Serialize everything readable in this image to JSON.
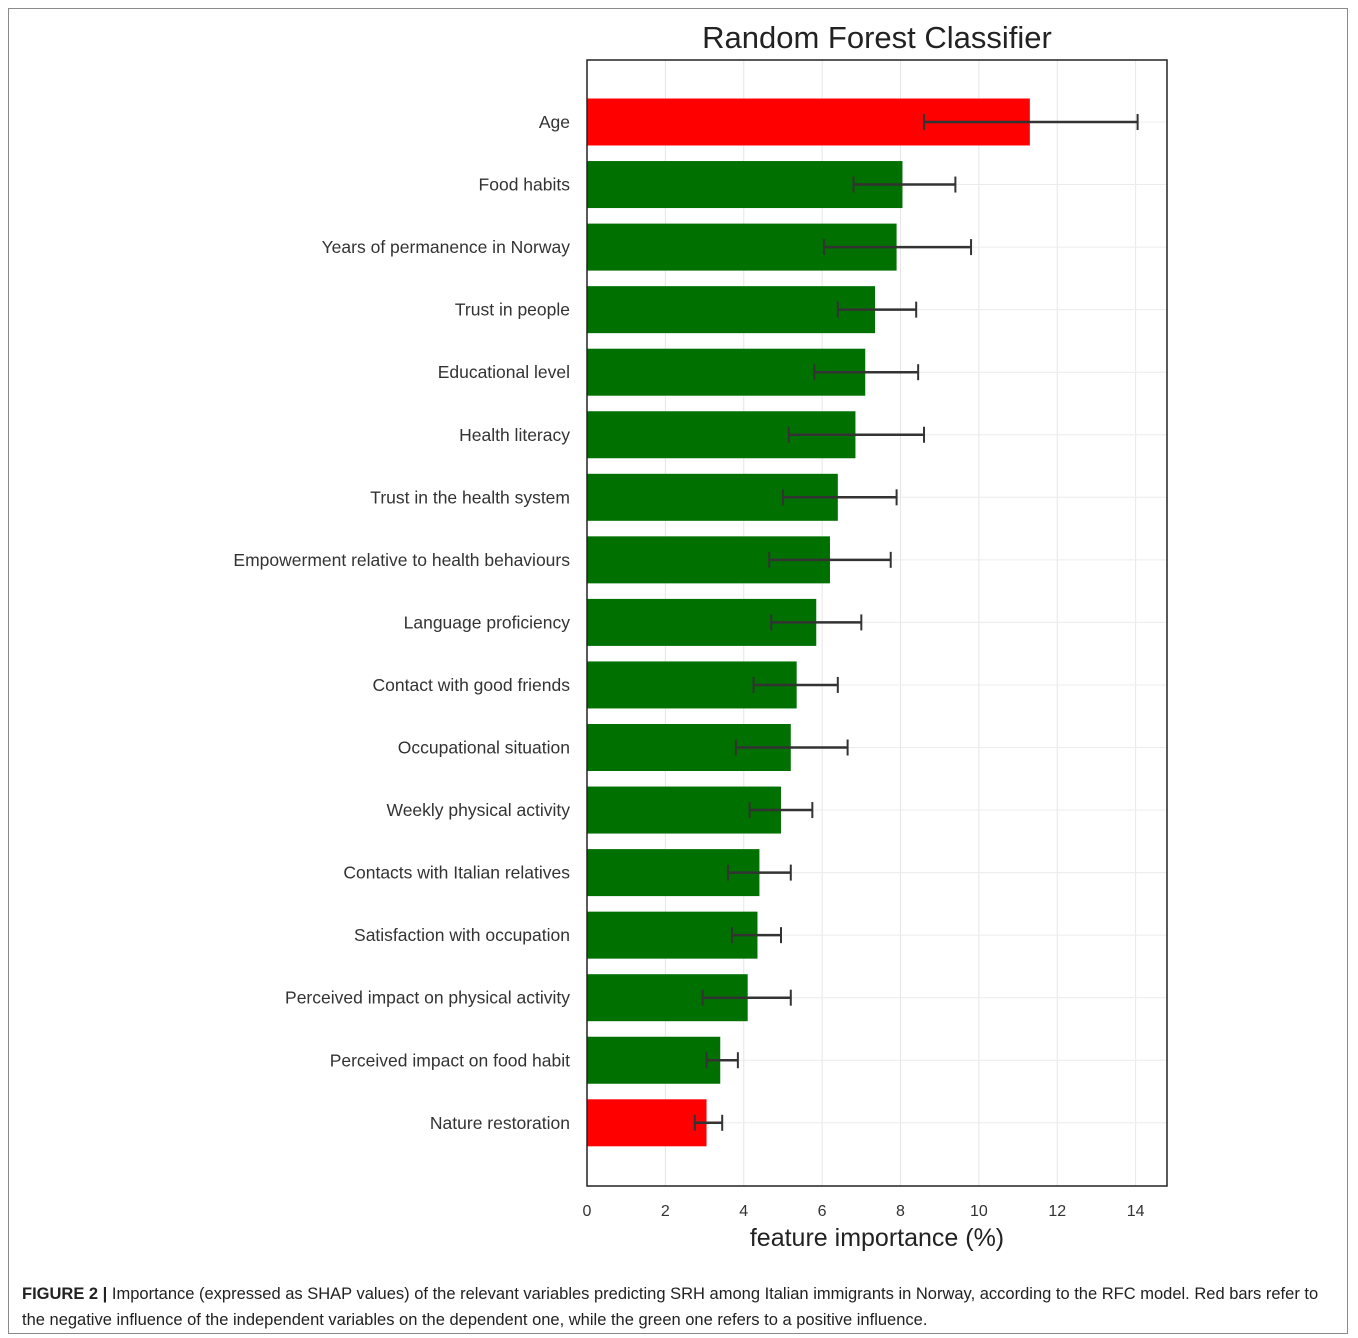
{
  "chart_data": {
    "type": "bar",
    "orientation": "horizontal",
    "title": "Random Forest Classifier",
    "xlabel": "feature importance (%)",
    "ylabel": "",
    "xlim": [
      0,
      14.8
    ],
    "x_ticks": [
      0,
      2,
      4,
      6,
      8,
      10,
      12,
      14
    ],
    "grid": true,
    "colors": {
      "negative": "#ff0000",
      "positive": "#007000",
      "error_bar": "#333333"
    },
    "bars": [
      {
        "label": "Age",
        "value": 11.3,
        "err_low": 8.6,
        "err_high": 14.05,
        "influence": "negative"
      },
      {
        "label": "Food habits",
        "value": 8.05,
        "err_low": 6.8,
        "err_high": 9.4,
        "influence": "positive"
      },
      {
        "label": "Years of permanence in Norway",
        "value": 7.9,
        "err_low": 6.05,
        "err_high": 9.8,
        "influence": "positive"
      },
      {
        "label": "Trust in people",
        "value": 7.35,
        "err_low": 6.4,
        "err_high": 8.4,
        "influence": "positive"
      },
      {
        "label": "Educational level",
        "value": 7.1,
        "err_low": 5.8,
        "err_high": 8.45,
        "influence": "positive"
      },
      {
        "label": "Health literacy",
        "value": 6.85,
        "err_low": 5.15,
        "err_high": 8.6,
        "influence": "positive"
      },
      {
        "label": "Trust in the health system",
        "value": 6.4,
        "err_low": 5.0,
        "err_high": 7.9,
        "influence": "positive"
      },
      {
        "label": "Empowerment relative to health behaviours",
        "value": 6.2,
        "err_low": 4.65,
        "err_high": 7.75,
        "influence": "positive"
      },
      {
        "label": "Language proficiency",
        "value": 5.85,
        "err_low": 4.7,
        "err_high": 7.0,
        "influence": "positive"
      },
      {
        "label": "Contact with good friends",
        "value": 5.35,
        "err_low": 4.25,
        "err_high": 6.4,
        "influence": "positive"
      },
      {
        "label": "Occupational situation",
        "value": 5.2,
        "err_low": 3.8,
        "err_high": 6.65,
        "influence": "positive"
      },
      {
        "label": "Weekly physical activity",
        "value": 4.95,
        "err_low": 4.15,
        "err_high": 5.75,
        "influence": "positive"
      },
      {
        "label": "Contacts with Italian relatives",
        "value": 4.4,
        "err_low": 3.6,
        "err_high": 5.2,
        "influence": "positive"
      },
      {
        "label": "Satisfaction with occupation",
        "value": 4.35,
        "err_low": 3.7,
        "err_high": 4.95,
        "influence": "positive"
      },
      {
        "label": "Perceived impact on physical activity",
        "value": 4.1,
        "err_low": 2.95,
        "err_high": 5.2,
        "influence": "positive"
      },
      {
        "label": "Perceived impact on food habit",
        "value": 3.4,
        "err_low": 3.05,
        "err_high": 3.85,
        "influence": "positive"
      },
      {
        "label": "Nature restoration",
        "value": 3.05,
        "err_low": 2.75,
        "err_high": 3.45,
        "influence": "negative"
      }
    ]
  },
  "caption": {
    "lead": "FIGURE 2 |",
    "text": "Importance (expressed as SHAP values) of the relevant variables predicting SRH among Italian immigrants in Norway, according to the RFC model. Red bars refer to the negative influence of the independent variables on the dependent one, while the green one refers to a positive influence."
  }
}
